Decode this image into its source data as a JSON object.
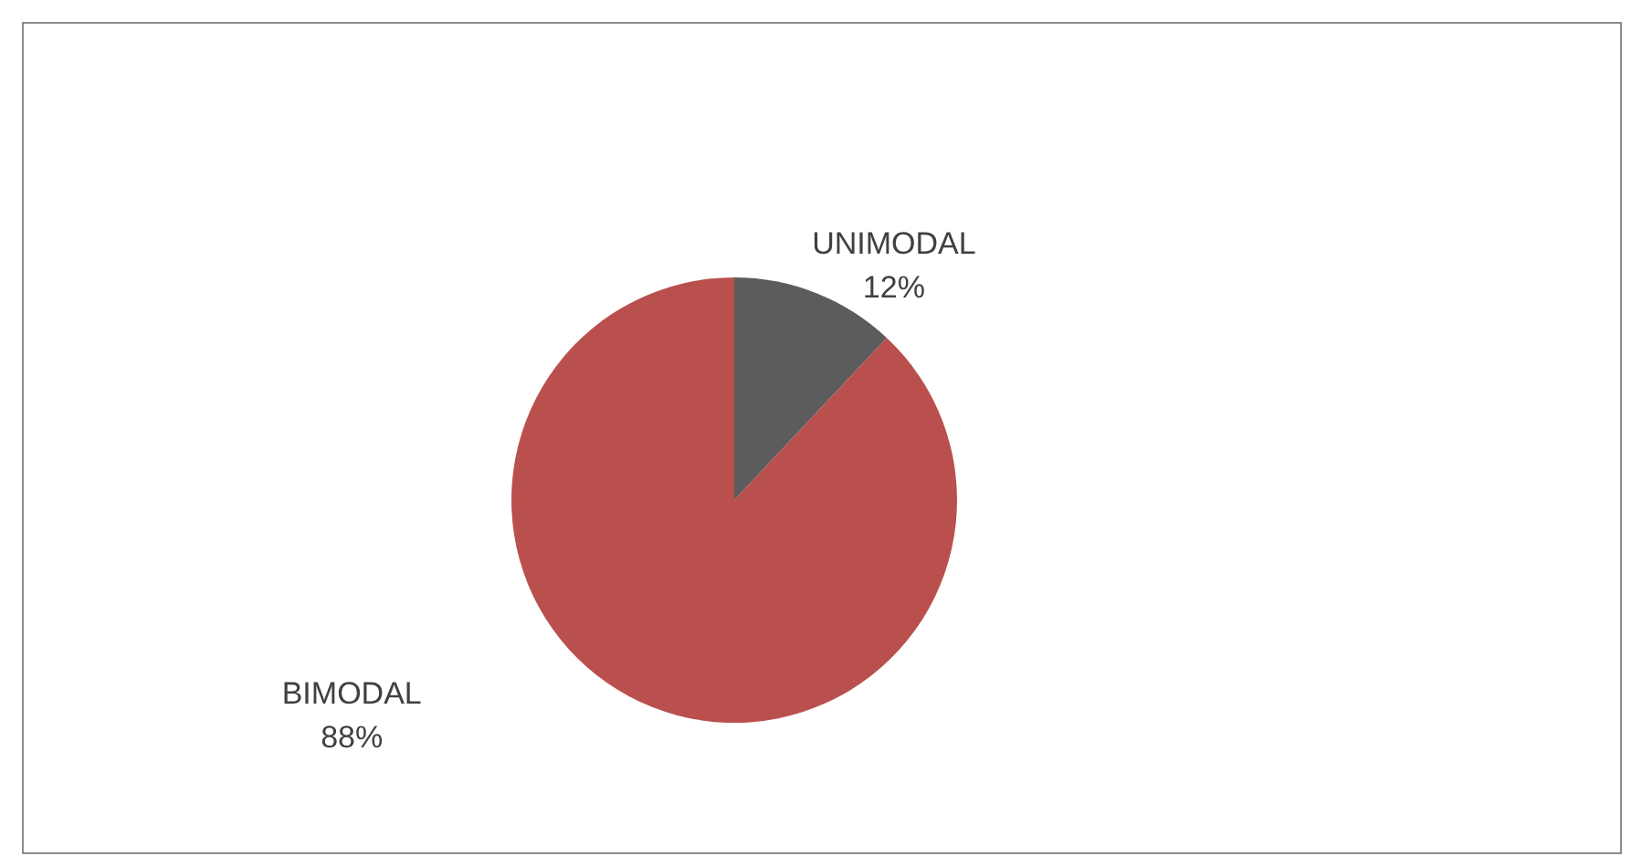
{
  "chart_data": {
    "type": "pie",
    "categories": [
      "UNIMODAL",
      "BIMODAL"
    ],
    "values": [
      12,
      88
    ],
    "value_labels": [
      "12%",
      "88%"
    ],
    "colors": [
      "#5c5c5c",
      "#b9504d"
    ],
    "legend": false
  }
}
